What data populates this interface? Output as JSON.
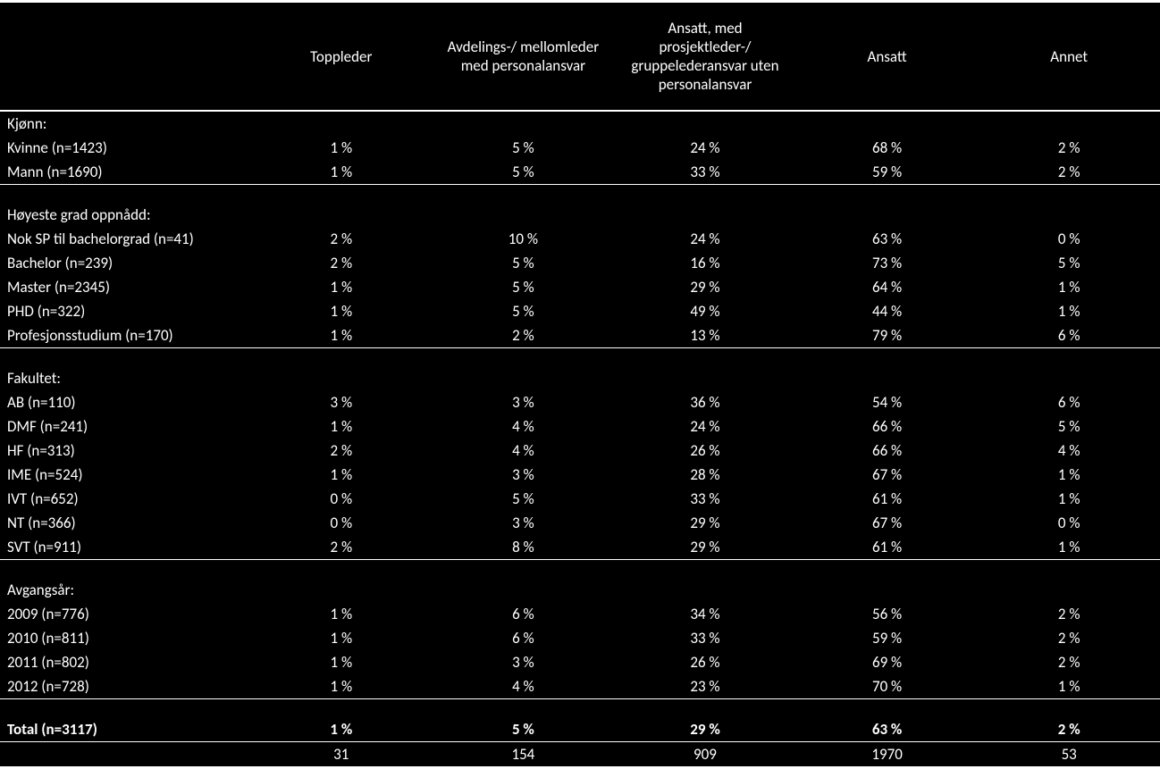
{
  "table": {
    "background_color": "#000000",
    "text_color": "#ffffff",
    "font_family": "Calibri, Arial, sans-serif",
    "font_size_pt": 13,
    "columns": [
      "Toppleder",
      "Avdelings-/ mellomleder med personalansvar",
      "Ansatt, med prosjektleder-/ gruppelederansvar uten personalansvar",
      "Ansatt",
      "Annet"
    ],
    "sections": [
      {
        "header": "Kjønn:",
        "rows": [
          {
            "label": "Kvinne (n=1423)",
            "values": [
              "1 %",
              "5 %",
              "24 %",
              "68 %",
              "2 %"
            ]
          },
          {
            "label": "Mann (n=1690)",
            "values": [
              "1 %",
              "5 %",
              "33 %",
              "59 %",
              "2 %"
            ]
          }
        ]
      },
      {
        "header": "Høyeste grad oppnådd:",
        "rows": [
          {
            "label": "Nok SP til bachelorgrad (n=41)",
            "values": [
              "2 %",
              "10 %",
              "24 %",
              "63 %",
              "0 %"
            ]
          },
          {
            "label": "Bachelor (n=239)",
            "values": [
              "2 %",
              "5 %",
              "16 %",
              "73 %",
              "5 %"
            ]
          },
          {
            "label": "Master (n=2345)",
            "values": [
              "1 %",
              "5 %",
              "29 %",
              "64 %",
              "1 %"
            ]
          },
          {
            "label": "PHD (n=322)",
            "values": [
              "1 %",
              "5 %",
              "49 %",
              "44 %",
              "1 %"
            ]
          },
          {
            "label": "Profesjonsstudium (n=170)",
            "values": [
              "1 %",
              "2 %",
              "13 %",
              "79 %",
              "6 %"
            ]
          }
        ]
      },
      {
        "header": "Fakultet:",
        "rows": [
          {
            "label": "AB (n=110)",
            "values": [
              "3 %",
              "3 %",
              "36 %",
              "54 %",
              "6 %"
            ]
          },
          {
            "label": "DMF (n=241)",
            "values": [
              "1 %",
              "4 %",
              "24 %",
              "66 %",
              "5 %"
            ]
          },
          {
            "label": "HF (n=313)",
            "values": [
              "2 %",
              "4 %",
              "26 %",
              "66 %",
              "4 %"
            ]
          },
          {
            "label": "IME (n=524)",
            "values": [
              "1 %",
              "3 %",
              "28 %",
              "67 %",
              "1 %"
            ]
          },
          {
            "label": "IVT (n=652)",
            "values": [
              "0 %",
              "5 %",
              "33 %",
              "61 %",
              "1 %"
            ]
          },
          {
            "label": "NT (n=366)",
            "values": [
              "0 %",
              "3 %",
              "29 %",
              "67 %",
              "0 %"
            ]
          },
          {
            "label": "SVT (n=911)",
            "values": [
              "2 %",
              "8 %",
              "29 %",
              "61 %",
              "1 %"
            ]
          }
        ]
      },
      {
        "header": "Avgangsår:",
        "rows": [
          {
            "label": "2009 (n=776)",
            "values": [
              "1 %",
              "6 %",
              "34 %",
              "56 %",
              "2 %"
            ]
          },
          {
            "label": "2010 (n=811)",
            "values": [
              "1 %",
              "6 %",
              "33 %",
              "59 %",
              "2 %"
            ]
          },
          {
            "label": "2011 (n=802)",
            "values": [
              "1 %",
              "3 %",
              "26 %",
              "69 %",
              "2 %"
            ]
          },
          {
            "label": "2012 (n=728)",
            "values": [
              "1 %",
              "4 %",
              "23 %",
              "70 %",
              "1 %"
            ]
          }
        ]
      }
    ],
    "total": {
      "label": "Total (n=3117)",
      "percents": [
        "1 %",
        "5 %",
        "29 %",
        "63 %",
        "2 %"
      ],
      "counts": [
        "31",
        "154",
        "909",
        "1970",
        "53"
      ]
    }
  }
}
